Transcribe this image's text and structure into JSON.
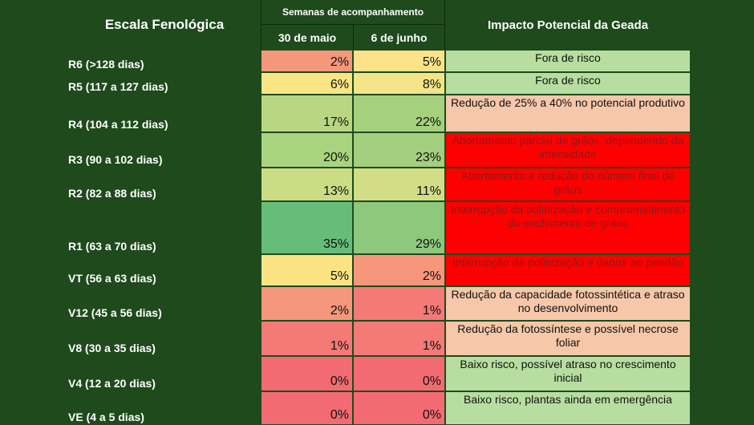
{
  "header": {
    "stage_title": "Escala Fenológica",
    "weeks_title": "Semanas de acompanhamento",
    "date1": "30 de maio",
    "date2": "6 de junho",
    "impact_title": "Impacto Potencial da Geada"
  },
  "colors": {
    "background": "#1e4a1c",
    "risk_low": "#b7dea0",
    "risk_moderate": "#f6c7a9",
    "risk_high": "#ff0000"
  },
  "rows": [
    {
      "stage": "R6 (>128 dias)",
      "v1": "2%",
      "v2": "5%",
      "c1": "#f4977b",
      "c2": "#fce38a",
      "impact": "Fora de risco",
      "ic": "#b7dea0",
      "red": false
    },
    {
      "stage": "R5 (117 a 127 dias)",
      "v1": "6%",
      "v2": "8%",
      "c1": "#f9e583",
      "c2": "#f2e487",
      "impact": "Fora de risco",
      "ic": "#b7dea0",
      "red": false
    },
    {
      "stage": "R4 (104 a 112 dias)",
      "v1": "17%",
      "v2": "22%",
      "c1": "#b9d782",
      "c2": "#a5d07e",
      "impact": "Redução de 25% a 40% no potencial produtivo",
      "ic": "#f6c7a9",
      "red": false
    },
    {
      "stage": "R3 (90 a 102 dias)",
      "v1": "20%",
      "v2": "23%",
      "c1": "#aad380",
      "c2": "#a3cf7e",
      "impact": "Abortamento parcial de grãos, dependendo da intensidade",
      "ic": "#ff0000",
      "red": true
    },
    {
      "stage": "R2 (82 a 88 dias)",
      "v1": "13%",
      "v2": "11%",
      "c1": "#cbdc84",
      "c2": "#d2de86",
      "impact": "Abortamento e redução do número final de grãos",
      "ic": "#ff0000",
      "red": true
    },
    {
      "stage": "R1 (63 a 70 dias)",
      "v1": "35%",
      "v2": "29%",
      "c1": "#66bd7a",
      "c2": "#8dc87d",
      "impact": "Interrupção da polinização e comprometimento do enchimento de grãos",
      "ic": "#ff0000",
      "red": true
    },
    {
      "stage": "VT (56 a 63 dias)",
      "v1": "5%",
      "v2": "2%",
      "c1": "#fbe384",
      "c2": "#f6977b",
      "impact": "Interrupção da polinização e danos ao pendão",
      "ic": "#ff0000",
      "red": true
    },
    {
      "stage": "V12 (45 a 56 dias)",
      "v1": "2%",
      "v2": "1%",
      "c1": "#f4977b",
      "c2": "#f37a77",
      "impact": "Redução da capacidade fotossintética e atraso no desenvolvimento",
      "ic": "#f6c7a9",
      "red": false
    },
    {
      "stage": "V8 (30 a 35 dias)",
      "v1": "1%",
      "v2": "1%",
      "c1": "#f37a77",
      "c2": "#f37a77",
      "impact": "Redução da fotossíntese e possível necrose foliar",
      "ic": "#f6c7a9",
      "red": false
    },
    {
      "stage": "V4 (12 a 20 dias)",
      "v1": "0%",
      "v2": "0%",
      "c1": "#f26b73",
      "c2": "#f26b73",
      "impact": "Baixo risco, possível atraso no crescimento inicial",
      "ic": "#b7dea0",
      "red": false
    },
    {
      "stage": "VE (4 a 5 dias)",
      "v1": "0%",
      "v2": "0%",
      "c1": "#f26b73",
      "c2": "#f26b73",
      "impact": "Baixo risco, plantas ainda em emergência",
      "ic": "#b7dea0",
      "red": false
    }
  ]
}
